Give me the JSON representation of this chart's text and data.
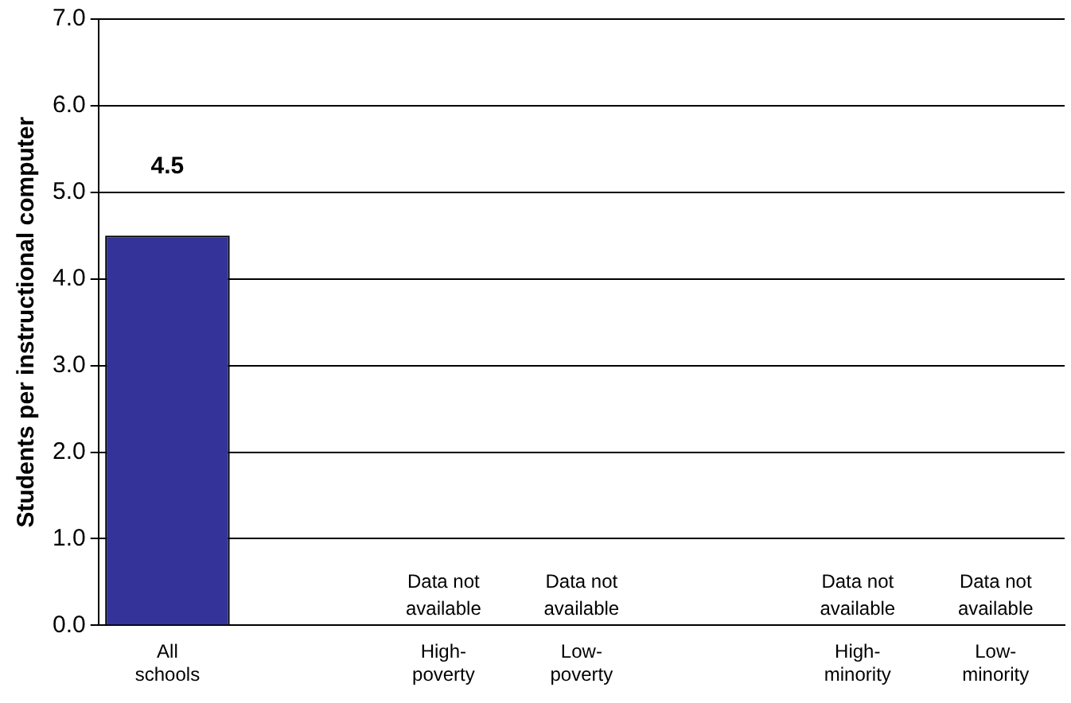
{
  "chart_data": {
    "type": "bar",
    "ylabel": "Students per instructional computer",
    "categories": [
      "All schools",
      null,
      "High- poverty",
      "Low- poverty",
      null,
      "High- minority",
      "Low- minority"
    ],
    "values": [
      4.5,
      null,
      null,
      null,
      null,
      null,
      null
    ],
    "color": "#333399",
    "value_labels": [
      "4.5",
      null,
      "Data not available",
      "Data not available",
      null,
      "Data not available",
      "Data not available"
    ],
    "ylim": [
      0,
      7
    ],
    "yticks": [
      {
        "value": 0,
        "label": "0.0"
      },
      {
        "value": 1,
        "label": "1.0"
      },
      {
        "value": 2,
        "label": "2.0"
      },
      {
        "value": 3,
        "label": "3.0"
      },
      {
        "value": 4,
        "label": "4.0"
      },
      {
        "value": 5,
        "label": "5.0"
      },
      {
        "value": 6,
        "label": "6.0"
      },
      {
        "value": 7,
        "label": "7.0"
      }
    ],
    "grid": "y"
  }
}
